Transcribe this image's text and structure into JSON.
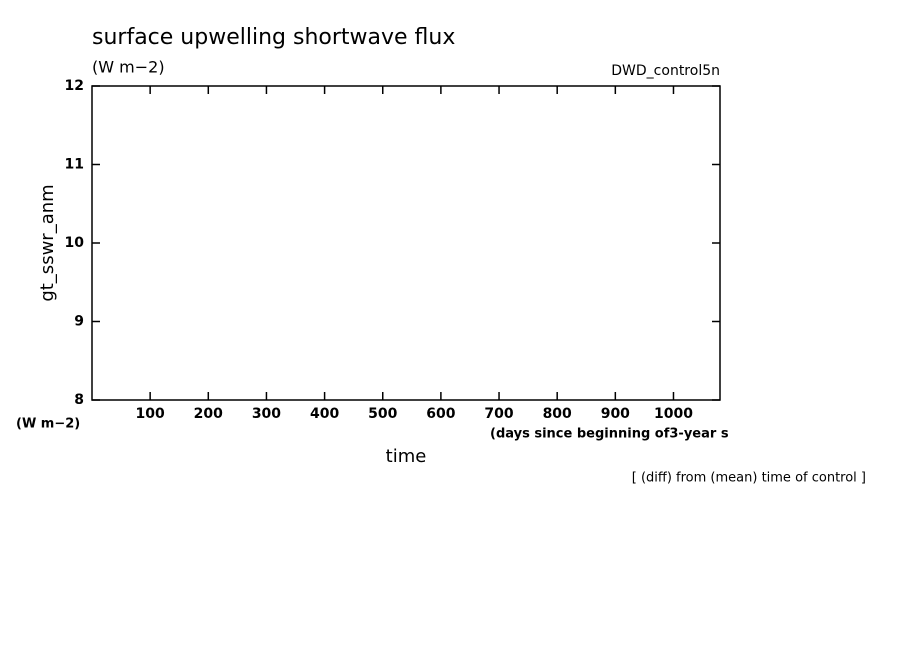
{
  "chart_data": {
    "type": "line",
    "title": "surface upwelling shortwave flux",
    "units": "(W m−2)",
    "run_name": "DWD_control5n",
    "y_label": "gt_sswr_anm",
    "y_units": "(W m−2)",
    "x_label": "time",
    "x_units": "(days since beginning of3-year s",
    "note": "[ (diff) from (mean) time of control ]",
    "series": [],
    "xlim": [
      0,
      1080
    ],
    "xticks": [
      100,
      200,
      300,
      400,
      500,
      600,
      700,
      800,
      900,
      1000
    ],
    "ylim": [
      8,
      12
    ],
    "yticks": [
      8,
      9,
      10,
      11,
      12
    ]
  }
}
